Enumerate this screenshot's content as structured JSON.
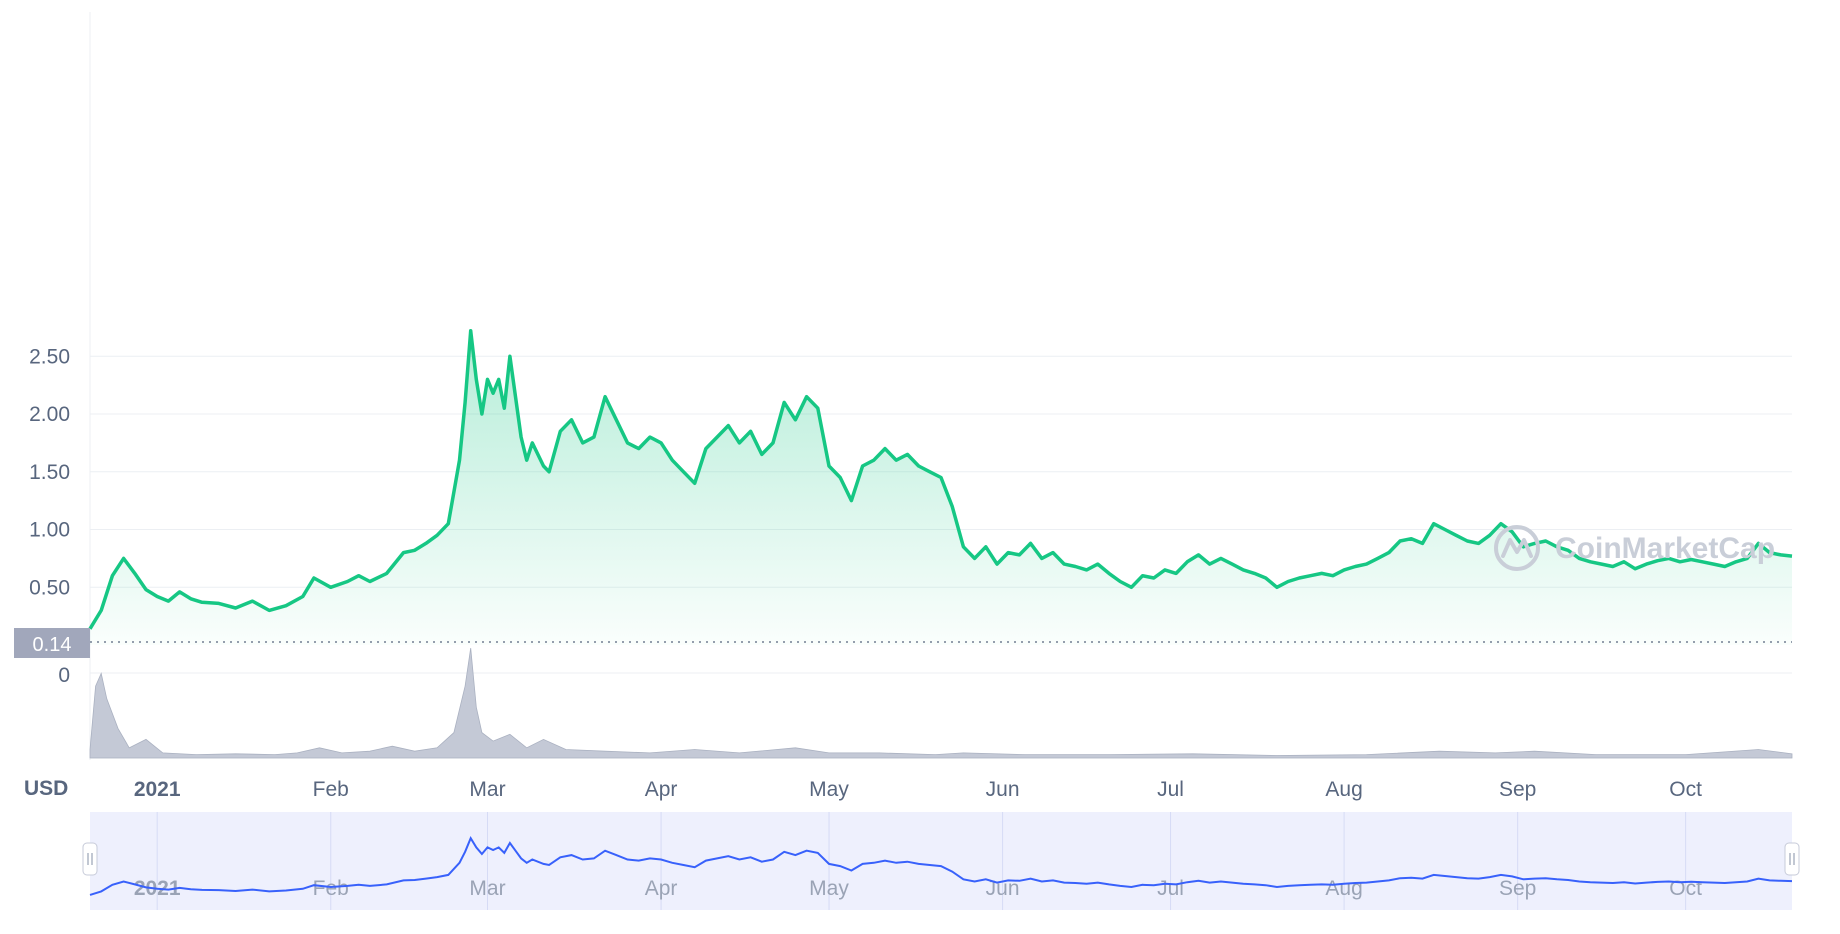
{
  "chart_data": {
    "type": "area",
    "currency_label": "USD",
    "start_price_label": "0.14",
    "volume_zero_label": "0",
    "watermark": "CoinMarketCap",
    "ylim": [
      0,
      2.75
    ],
    "grid": true,
    "colors": {
      "line": "#16c784",
      "area_top": "#16c784",
      "volume": "#c4c9d6",
      "navigator_line": "#3861fb",
      "navigator_bg": "#eef0fd",
      "axis_text": "#58667e"
    },
    "y_ticks": [
      {
        "value": 0.5,
        "label": "0.50"
      },
      {
        "value": 1.0,
        "label": "1.00"
      },
      {
        "value": 1.5,
        "label": "1.50"
      },
      {
        "value": 2.0,
        "label": "2.00"
      },
      {
        "value": 2.5,
        "label": "2.50"
      }
    ],
    "x_ticks": [
      {
        "date": "2021-01-01",
        "label": "2021",
        "bold": true
      },
      {
        "date": "2021-02-01",
        "label": "Feb"
      },
      {
        "date": "2021-03-01",
        "label": "Mar"
      },
      {
        "date": "2021-04-01",
        "label": "Apr"
      },
      {
        "date": "2021-05-01",
        "label": "May"
      },
      {
        "date": "2021-06-01",
        "label": "Jun"
      },
      {
        "date": "2021-07-01",
        "label": "Jul"
      },
      {
        "date": "2021-08-01",
        "label": "Aug"
      },
      {
        "date": "2021-09-01",
        "label": "Sep"
      },
      {
        "date": "2021-10-01",
        "label": "Oct"
      }
    ],
    "x_range": [
      "2020-12-20",
      "2021-10-20"
    ],
    "price_series": [
      [
        "2020-12-20",
        0.14
      ],
      [
        "2020-12-22",
        0.3
      ],
      [
        "2020-12-24",
        0.6
      ],
      [
        "2020-12-26",
        0.75
      ],
      [
        "2020-12-28",
        0.62
      ],
      [
        "2020-12-30",
        0.48
      ],
      [
        "2021-01-01",
        0.42
      ],
      [
        "2021-01-03",
        0.38
      ],
      [
        "2021-01-05",
        0.46
      ],
      [
        "2021-01-07",
        0.4
      ],
      [
        "2021-01-09",
        0.37
      ],
      [
        "2021-01-12",
        0.36
      ],
      [
        "2021-01-15",
        0.32
      ],
      [
        "2021-01-18",
        0.38
      ],
      [
        "2021-01-21",
        0.3
      ],
      [
        "2021-01-24",
        0.34
      ],
      [
        "2021-01-27",
        0.42
      ],
      [
        "2021-01-29",
        0.58
      ],
      [
        "2021-02-01",
        0.5
      ],
      [
        "2021-02-04",
        0.55
      ],
      [
        "2021-02-06",
        0.6
      ],
      [
        "2021-02-08",
        0.55
      ],
      [
        "2021-02-11",
        0.62
      ],
      [
        "2021-02-14",
        0.8
      ],
      [
        "2021-02-16",
        0.82
      ],
      [
        "2021-02-18",
        0.88
      ],
      [
        "2021-02-20",
        0.95
      ],
      [
        "2021-02-22",
        1.05
      ],
      [
        "2021-02-24",
        1.6
      ],
      [
        "2021-02-25",
        2.1
      ],
      [
        "2021-02-26",
        2.72
      ],
      [
        "2021-02-27",
        2.3
      ],
      [
        "2021-02-28",
        2.0
      ],
      [
        "2021-03-01",
        2.3
      ],
      [
        "2021-03-02",
        2.18
      ],
      [
        "2021-03-03",
        2.3
      ],
      [
        "2021-03-04",
        2.05
      ],
      [
        "2021-03-05",
        2.5
      ],
      [
        "2021-03-06",
        2.15
      ],
      [
        "2021-03-07",
        1.8
      ],
      [
        "2021-03-08",
        1.6
      ],
      [
        "2021-03-09",
        1.75
      ],
      [
        "2021-03-11",
        1.55
      ],
      [
        "2021-03-12",
        1.5
      ],
      [
        "2021-03-14",
        1.85
      ],
      [
        "2021-03-16",
        1.95
      ],
      [
        "2021-03-18",
        1.75
      ],
      [
        "2021-03-20",
        1.8
      ],
      [
        "2021-03-22",
        2.15
      ],
      [
        "2021-03-24",
        1.95
      ],
      [
        "2021-03-26",
        1.75
      ],
      [
        "2021-03-28",
        1.7
      ],
      [
        "2021-03-30",
        1.8
      ],
      [
        "2021-04-01",
        1.75
      ],
      [
        "2021-04-03",
        1.6
      ],
      [
        "2021-04-05",
        1.5
      ],
      [
        "2021-04-07",
        1.4
      ],
      [
        "2021-04-09",
        1.7
      ],
      [
        "2021-04-11",
        1.8
      ],
      [
        "2021-04-13",
        1.9
      ],
      [
        "2021-04-15",
        1.75
      ],
      [
        "2021-04-17",
        1.85
      ],
      [
        "2021-04-19",
        1.65
      ],
      [
        "2021-04-21",
        1.75
      ],
      [
        "2021-04-23",
        2.1
      ],
      [
        "2021-04-25",
        1.95
      ],
      [
        "2021-04-27",
        2.15
      ],
      [
        "2021-04-29",
        2.05
      ],
      [
        "2021-05-01",
        1.55
      ],
      [
        "2021-05-03",
        1.45
      ],
      [
        "2021-05-05",
        1.25
      ],
      [
        "2021-05-07",
        1.55
      ],
      [
        "2021-05-09",
        1.6
      ],
      [
        "2021-05-11",
        1.7
      ],
      [
        "2021-05-13",
        1.6
      ],
      [
        "2021-05-15",
        1.65
      ],
      [
        "2021-05-17",
        1.55
      ],
      [
        "2021-05-19",
        1.5
      ],
      [
        "2021-05-21",
        1.45
      ],
      [
        "2021-05-23",
        1.2
      ],
      [
        "2021-05-25",
        0.85
      ],
      [
        "2021-05-27",
        0.75
      ],
      [
        "2021-05-29",
        0.85
      ],
      [
        "2021-05-31",
        0.7
      ],
      [
        "2021-06-02",
        0.8
      ],
      [
        "2021-06-04",
        0.78
      ],
      [
        "2021-06-06",
        0.88
      ],
      [
        "2021-06-08",
        0.75
      ],
      [
        "2021-06-10",
        0.8
      ],
      [
        "2021-06-12",
        0.7
      ],
      [
        "2021-06-14",
        0.68
      ],
      [
        "2021-06-16",
        0.65
      ],
      [
        "2021-06-18",
        0.7
      ],
      [
        "2021-06-20",
        0.62
      ],
      [
        "2021-06-22",
        0.55
      ],
      [
        "2021-06-24",
        0.5
      ],
      [
        "2021-06-26",
        0.6
      ],
      [
        "2021-06-28",
        0.58
      ],
      [
        "2021-06-30",
        0.65
      ],
      [
        "2021-07-02",
        0.62
      ],
      [
        "2021-07-04",
        0.72
      ],
      [
        "2021-07-06",
        0.78
      ],
      [
        "2021-07-08",
        0.7
      ],
      [
        "2021-07-10",
        0.75
      ],
      [
        "2021-07-12",
        0.7
      ],
      [
        "2021-07-14",
        0.65
      ],
      [
        "2021-07-16",
        0.62
      ],
      [
        "2021-07-18",
        0.58
      ],
      [
        "2021-07-20",
        0.5
      ],
      [
        "2021-07-22",
        0.55
      ],
      [
        "2021-07-24",
        0.58
      ],
      [
        "2021-07-26",
        0.6
      ],
      [
        "2021-07-28",
        0.62
      ],
      [
        "2021-07-30",
        0.6
      ],
      [
        "2021-08-01",
        0.65
      ],
      [
        "2021-08-03",
        0.68
      ],
      [
        "2021-08-05",
        0.7
      ],
      [
        "2021-08-07",
        0.75
      ],
      [
        "2021-08-09",
        0.8
      ],
      [
        "2021-08-11",
        0.9
      ],
      [
        "2021-08-13",
        0.92
      ],
      [
        "2021-08-15",
        0.88
      ],
      [
        "2021-08-17",
        1.05
      ],
      [
        "2021-08-19",
        1.0
      ],
      [
        "2021-08-21",
        0.95
      ],
      [
        "2021-08-23",
        0.9
      ],
      [
        "2021-08-25",
        0.88
      ],
      [
        "2021-08-27",
        0.95
      ],
      [
        "2021-08-29",
        1.05
      ],
      [
        "2021-08-31",
        0.98
      ],
      [
        "2021-09-02",
        0.85
      ],
      [
        "2021-09-04",
        0.88
      ],
      [
        "2021-09-06",
        0.9
      ],
      [
        "2021-09-08",
        0.85
      ],
      [
        "2021-09-10",
        0.82
      ],
      [
        "2021-09-12",
        0.75
      ],
      [
        "2021-09-14",
        0.72
      ],
      [
        "2021-09-16",
        0.7
      ],
      [
        "2021-09-18",
        0.68
      ],
      [
        "2021-09-20",
        0.72
      ],
      [
        "2021-09-22",
        0.66
      ],
      [
        "2021-09-24",
        0.7
      ],
      [
        "2021-09-26",
        0.73
      ],
      [
        "2021-09-28",
        0.75
      ],
      [
        "2021-09-30",
        0.72
      ],
      [
        "2021-10-02",
        0.74
      ],
      [
        "2021-10-04",
        0.72
      ],
      [
        "2021-10-06",
        0.7
      ],
      [
        "2021-10-08",
        0.68
      ],
      [
        "2021-10-10",
        0.72
      ],
      [
        "2021-10-12",
        0.75
      ],
      [
        "2021-10-14",
        0.88
      ],
      [
        "2021-10-16",
        0.8
      ],
      [
        "2021-10-18",
        0.78
      ],
      [
        "2021-10-20",
        0.77
      ]
    ],
    "volume_series": [
      [
        "2020-12-20",
        0.1
      ],
      [
        "2020-12-21",
        0.85
      ],
      [
        "2020-12-22",
        1.0
      ],
      [
        "2020-12-23",
        0.7
      ],
      [
        "2020-12-25",
        0.35
      ],
      [
        "2020-12-27",
        0.12
      ],
      [
        "2020-12-30",
        0.22
      ],
      [
        "2021-01-02",
        0.06
      ],
      [
        "2021-01-08",
        0.04
      ],
      [
        "2021-01-15",
        0.05
      ],
      [
        "2021-01-22",
        0.04
      ],
      [
        "2021-01-26",
        0.06
      ],
      [
        "2021-01-30",
        0.12
      ],
      [
        "2021-02-03",
        0.06
      ],
      [
        "2021-02-08",
        0.08
      ],
      [
        "2021-02-12",
        0.14
      ],
      [
        "2021-02-16",
        0.08
      ],
      [
        "2021-02-20",
        0.12
      ],
      [
        "2021-02-23",
        0.3
      ],
      [
        "2021-02-25",
        0.85
      ],
      [
        "2021-02-26",
        1.3
      ],
      [
        "2021-02-27",
        0.6
      ],
      [
        "2021-02-28",
        0.3
      ],
      [
        "2021-03-02",
        0.2
      ],
      [
        "2021-03-05",
        0.28
      ],
      [
        "2021-03-08",
        0.12
      ],
      [
        "2021-03-11",
        0.22
      ],
      [
        "2021-03-15",
        0.1
      ],
      [
        "2021-03-22",
        0.08
      ],
      [
        "2021-03-30",
        0.06
      ],
      [
        "2021-04-07",
        0.1
      ],
      [
        "2021-04-15",
        0.06
      ],
      [
        "2021-04-25",
        0.12
      ],
      [
        "2021-05-01",
        0.06
      ],
      [
        "2021-05-10",
        0.06
      ],
      [
        "2021-05-20",
        0.04
      ],
      [
        "2021-05-25",
        0.06
      ],
      [
        "2021-06-05",
        0.04
      ],
      [
        "2021-06-20",
        0.04
      ],
      [
        "2021-07-05",
        0.05
      ],
      [
        "2021-07-20",
        0.03
      ],
      [
        "2021-08-05",
        0.04
      ],
      [
        "2021-08-18",
        0.08
      ],
      [
        "2021-08-28",
        0.06
      ],
      [
        "2021-09-04",
        0.08
      ],
      [
        "2021-09-15",
        0.04
      ],
      [
        "2021-10-01",
        0.04
      ],
      [
        "2021-10-14",
        0.1
      ],
      [
        "2021-10-20",
        0.05
      ]
    ]
  }
}
